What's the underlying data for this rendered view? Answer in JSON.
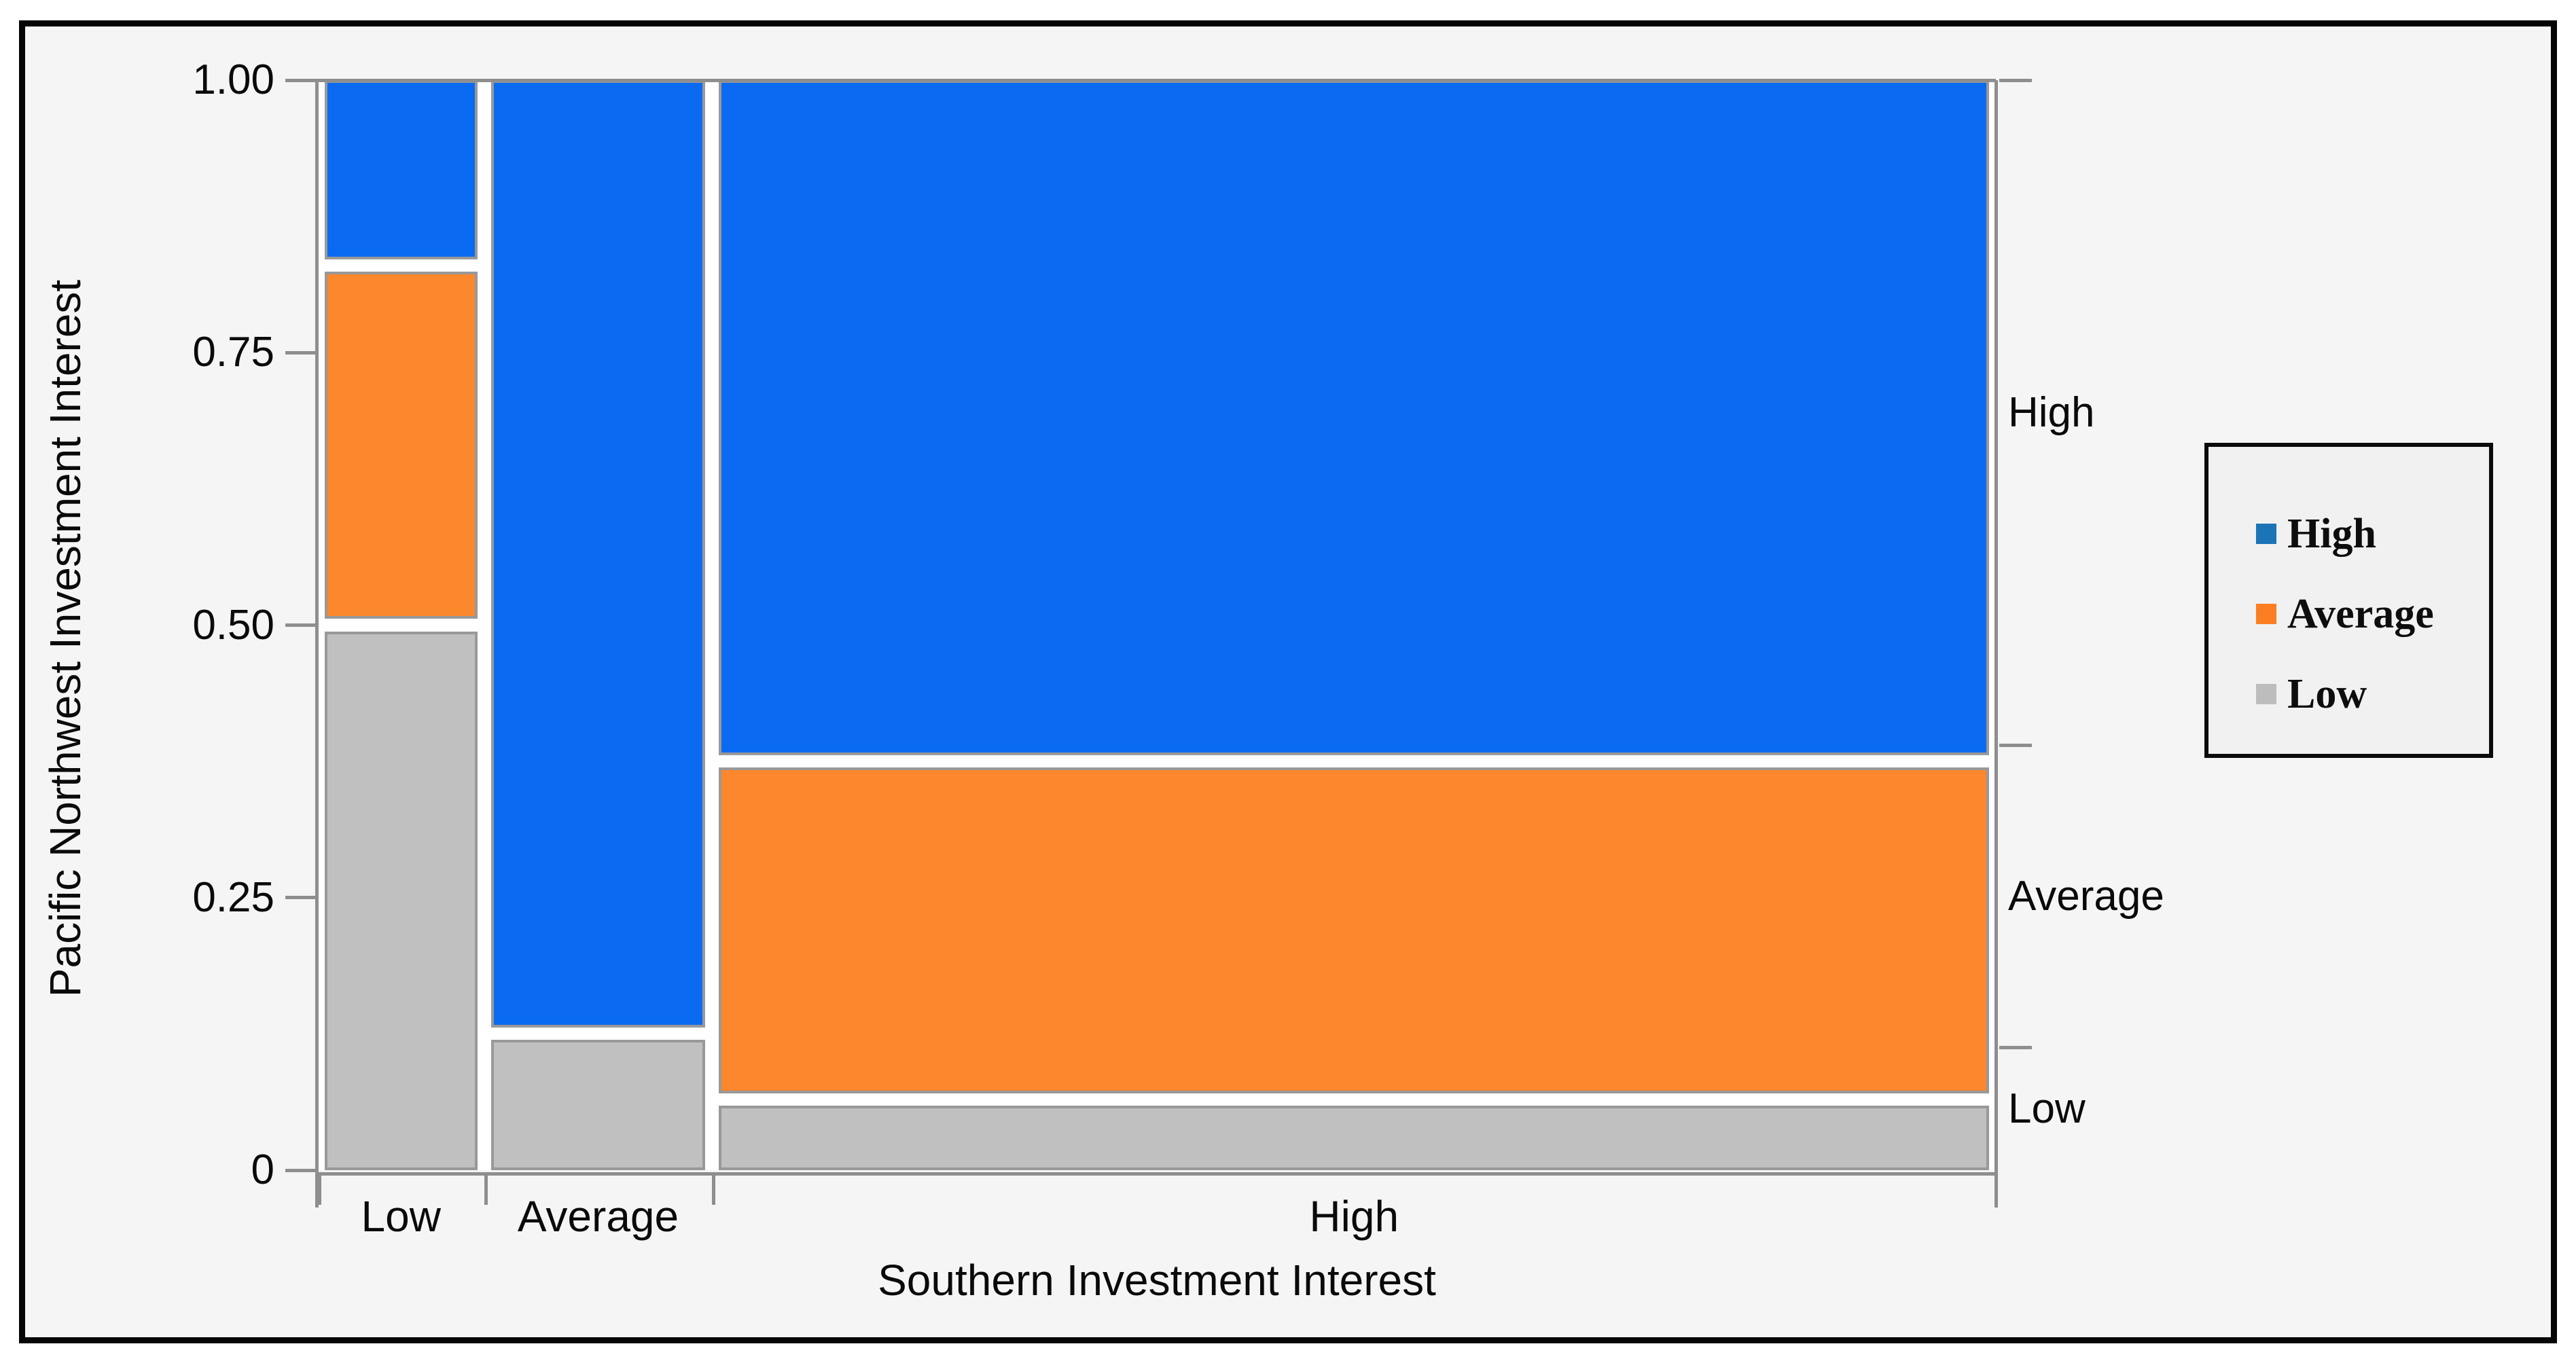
{
  "page": {
    "background": "#ffffff",
    "panel_background": "#f5f5f5",
    "frame_border_color": "#060606"
  },
  "y_axis": {
    "title": "Pacific Northwest Investment Interest",
    "tick_labels": [
      "1.00",
      "0.75",
      "0.50",
      "0.25",
      "0"
    ]
  },
  "x_axis": {
    "title": "Southern Investment Interest",
    "category_labels": [
      "Low",
      "Average",
      "High"
    ]
  },
  "right_axis": {
    "labels": [
      "High",
      "Average",
      "Low"
    ],
    "boundaries_from_top": [
      0.61,
      0.8875
    ]
  },
  "legend": {
    "items": [
      {
        "label": "High",
        "color": "#1b74b6"
      },
      {
        "label": "Average",
        "color": "#fb7e22"
      },
      {
        "label": "Low",
        "color": "#bdbdbd"
      }
    ]
  },
  "chart_data": {
    "type": "bar",
    "variant": "mosaic",
    "title": "",
    "xlabel": "Southern Investment Interest",
    "ylabel": "Pacific Northwest Investment Interest",
    "categories": [
      "Low",
      "Average",
      "High"
    ],
    "column_width_proportions": [
      0.099,
      0.136,
      0.765
    ],
    "series": [
      {
        "name": "High",
        "color": "#0a6bf2",
        "values": [
          0.17,
          0.875,
          0.625
        ]
      },
      {
        "name": "Average",
        "color": "#fc872d",
        "values": [
          0.33,
          0.0,
          0.31
        ]
      },
      {
        "name": "Low",
        "color": "#c0c0c0",
        "values": [
          0.5,
          0.125,
          0.065
        ]
      }
    ],
    "ylim": [
      0,
      1
    ],
    "y_tick_values": [
      1.0,
      0.75,
      0.5,
      0.25,
      0
    ],
    "right_marginal_proportions_from_bottom": {
      "Low": 0.115,
      "Average": 0.275,
      "High": 0.61
    },
    "segment_border_color": "#999999",
    "axis_color": "#8e8e8e",
    "grid": false,
    "legend_position": "right"
  }
}
